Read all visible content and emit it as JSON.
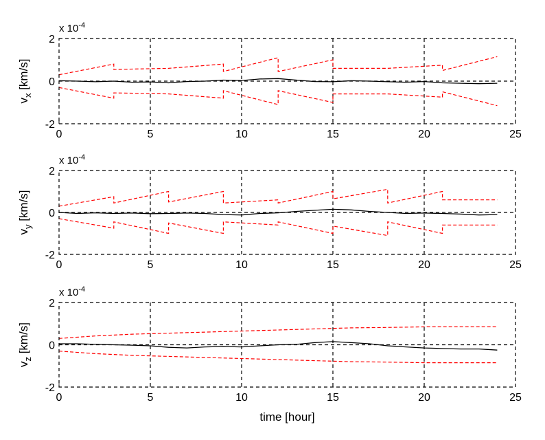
{
  "chart_data": [
    {
      "type": "line",
      "ylabel": "v",
      "ylabel_sub": "x",
      "ylabel_unit": " [km/s]",
      "exponent_label": "x 10",
      "exponent_power": "-4",
      "xlim": [
        0,
        25
      ],
      "ylim": [
        -2,
        2
      ],
      "xticks": [
        "0",
        "5",
        "10",
        "15",
        "20",
        "25"
      ],
      "yticks": [
        "-2",
        "0",
        "2"
      ],
      "grid": true,
      "colors": {
        "error": "#000000",
        "bound": "#ff0000"
      },
      "series": [
        {
          "role": "error",
          "style": "solid",
          "color": "#000000",
          "x": [
            0,
            1,
            2,
            3,
            4,
            5,
            6,
            7,
            8,
            9,
            10,
            11,
            12,
            13,
            14,
            15,
            16,
            17,
            18,
            19,
            20,
            21,
            22,
            23,
            24
          ],
          "y": [
            0.02,
            0.0,
            -0.03,
            0.0,
            -0.05,
            -0.04,
            -0.08,
            -0.02,
            0.0,
            0.05,
            0.03,
            0.1,
            0.12,
            0.05,
            -0.02,
            -0.03,
            0.02,
            0.0,
            -0.03,
            -0.05,
            -0.02,
            -0.08,
            -0.1,
            -0.12,
            -0.1
          ]
        },
        {
          "role": "upper-bound",
          "style": "dashed",
          "color": "#ff0000",
          "x": [
            0,
            3,
            3,
            6,
            6,
            9,
            9,
            12,
            12,
            15,
            15,
            18,
            18,
            21,
            21,
            24
          ],
          "y": [
            0.3,
            0.8,
            0.55,
            0.6,
            0.6,
            0.8,
            0.45,
            1.1,
            0.45,
            1.0,
            0.6,
            0.6,
            0.6,
            0.75,
            0.5,
            1.15
          ]
        },
        {
          "role": "lower-bound",
          "style": "dashed",
          "color": "#ff0000",
          "x": [
            0,
            3,
            3,
            6,
            6,
            9,
            9,
            12,
            12,
            15,
            15,
            18,
            18,
            21,
            21,
            24
          ],
          "y": [
            -0.3,
            -0.8,
            -0.55,
            -0.6,
            -0.6,
            -0.8,
            -0.45,
            -1.1,
            -0.45,
            -1.0,
            -0.6,
            -0.6,
            -0.6,
            -0.75,
            -0.5,
            -1.15
          ]
        }
      ]
    },
    {
      "type": "line",
      "ylabel": "v",
      "ylabel_sub": "y",
      "ylabel_unit": " [km/s]",
      "exponent_label": "x 10",
      "exponent_power": "-4",
      "xlim": [
        0,
        25
      ],
      "ylim": [
        -2,
        2
      ],
      "xticks": [
        "0",
        "5",
        "10",
        "15",
        "20",
        "25"
      ],
      "yticks": [
        "-2",
        "0",
        "2"
      ],
      "grid": true,
      "colors": {
        "error": "#000000",
        "bound": "#ff0000"
      },
      "series": [
        {
          "role": "error",
          "style": "solid",
          "color": "#000000",
          "x": [
            0,
            1,
            2,
            3,
            4,
            5,
            6,
            7,
            8,
            9,
            10,
            11,
            12,
            13,
            14,
            15,
            16,
            17,
            18,
            19,
            20,
            21,
            22,
            23,
            24
          ],
          "y": [
            0.0,
            -0.05,
            -0.02,
            -0.05,
            -0.03,
            -0.06,
            -0.05,
            -0.03,
            -0.05,
            -0.1,
            -0.12,
            -0.05,
            -0.02,
            0.05,
            0.1,
            0.15,
            0.12,
            0.05,
            0.0,
            -0.05,
            -0.03,
            -0.05,
            -0.08,
            -0.12,
            -0.1
          ]
        },
        {
          "role": "upper-bound",
          "style": "dashed",
          "color": "#ff0000",
          "x": [
            0,
            3,
            3,
            6,
            6,
            9,
            9,
            12,
            12,
            15,
            15,
            18,
            18,
            21,
            21,
            24
          ],
          "y": [
            0.3,
            0.75,
            0.45,
            1.0,
            0.5,
            1.0,
            0.45,
            0.6,
            0.45,
            1.0,
            0.65,
            1.1,
            0.45,
            1.0,
            0.6,
            0.6
          ]
        },
        {
          "role": "lower-bound",
          "style": "dashed",
          "color": "#ff0000",
          "x": [
            0,
            3,
            3,
            6,
            6,
            9,
            9,
            12,
            12,
            15,
            15,
            18,
            18,
            21,
            21,
            24
          ],
          "y": [
            -0.3,
            -0.75,
            -0.45,
            -1.0,
            -0.5,
            -1.0,
            -0.45,
            -0.6,
            -0.45,
            -1.0,
            -0.65,
            -1.1,
            -0.45,
            -1.0,
            -0.6,
            -0.6
          ]
        }
      ]
    },
    {
      "type": "line",
      "ylabel": "v",
      "ylabel_sub": "z",
      "ylabel_unit": " [km/s]",
      "exponent_label": "x 10",
      "exponent_power": "-4",
      "xlim": [
        0,
        25
      ],
      "ylim": [
        -2,
        2
      ],
      "xticks": [
        "0",
        "5",
        "10",
        "15",
        "20",
        "25"
      ],
      "yticks": [
        "-2",
        "0",
        "2"
      ],
      "xlabel": "time [hour]",
      "grid": true,
      "colors": {
        "error": "#000000",
        "bound": "#ff0000"
      },
      "series": [
        {
          "role": "error",
          "style": "solid",
          "color": "#000000",
          "x": [
            0,
            1,
            2,
            3,
            4,
            5,
            6,
            7,
            8,
            9,
            10,
            11,
            12,
            13,
            14,
            15,
            16,
            17,
            18,
            19,
            20,
            21,
            22,
            23,
            24
          ],
          "y": [
            0.05,
            0.05,
            0.02,
            0.0,
            -0.02,
            -0.05,
            -0.12,
            -0.15,
            -0.1,
            -0.08,
            -0.1,
            -0.05,
            0.0,
            0.02,
            0.1,
            0.15,
            0.1,
            0.05,
            -0.05,
            -0.1,
            -0.15,
            -0.18,
            -0.2,
            -0.2,
            -0.25
          ]
        },
        {
          "role": "upper-bound",
          "style": "dashed",
          "color": "#ff0000",
          "x": [
            0,
            2,
            4,
            6,
            8,
            10,
            12,
            14,
            16,
            18,
            20,
            22,
            24
          ],
          "y": [
            0.3,
            0.42,
            0.5,
            0.55,
            0.6,
            0.65,
            0.7,
            0.75,
            0.8,
            0.82,
            0.85,
            0.85,
            0.85
          ]
        },
        {
          "role": "lower-bound",
          "style": "dashed",
          "color": "#ff0000",
          "x": [
            0,
            2,
            4,
            6,
            8,
            10,
            12,
            14,
            16,
            18,
            20,
            22,
            24
          ],
          "y": [
            -0.3,
            -0.42,
            -0.5,
            -0.55,
            -0.6,
            -0.65,
            -0.7,
            -0.75,
            -0.8,
            -0.82,
            -0.85,
            -0.85,
            -0.85
          ]
        }
      ]
    }
  ]
}
